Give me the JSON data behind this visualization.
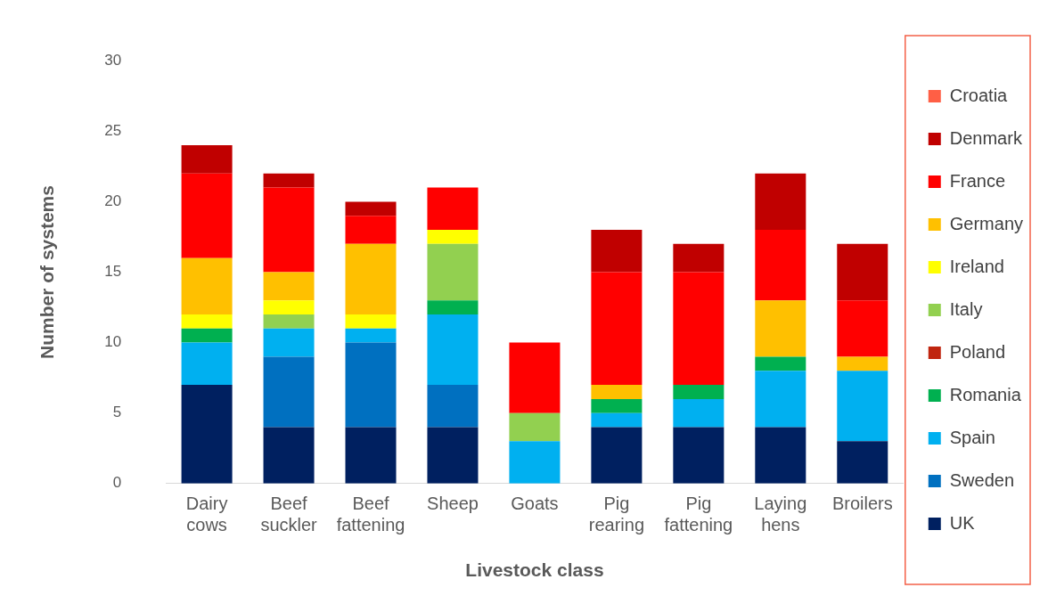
{
  "chart_data": {
    "type": "bar",
    "stacked": true,
    "xlabel": "Livestock class",
    "ylabel": "Number of systems",
    "categories": [
      "Dairy cows",
      "Beef suckler",
      "Beef fattening",
      "Sheep",
      "Goats",
      "Pig rearing",
      "Pig fattening",
      "Laying hens",
      "Broilers"
    ],
    "ylim": [
      0,
      30
    ],
    "yticks": [
      0,
      5,
      10,
      15,
      20,
      25,
      30
    ],
    "grid": false,
    "legend": "right",
    "series": [
      {
        "name": "UK",
        "color": "#002060",
        "values": [
          7,
          4,
          4,
          4,
          0,
          4,
          4,
          4,
          3
        ]
      },
      {
        "name": "Sweden",
        "color": "#0070c0",
        "values": [
          0,
          5,
          6,
          3,
          0,
          0,
          0,
          0,
          0
        ]
      },
      {
        "name": "Spain",
        "color": "#00b0f0",
        "values": [
          3,
          2,
          1,
          5,
          3,
          1,
          2,
          4,
          5
        ]
      },
      {
        "name": "Romania",
        "color": "#00b050",
        "values": [
          1,
          0,
          0,
          1,
          0,
          1,
          1,
          1,
          0
        ]
      },
      {
        "name": "Poland",
        "color": "#c0250f",
        "values": [
          0,
          0,
          0,
          0,
          0,
          0,
          0,
          0,
          0
        ]
      },
      {
        "name": "Italy",
        "color": "#92d050",
        "values": [
          0,
          1,
          0,
          4,
          2,
          0,
          0,
          0,
          0
        ]
      },
      {
        "name": "Ireland",
        "color": "#ffff00",
        "values": [
          1,
          1,
          1,
          1,
          0,
          0,
          0,
          0,
          0
        ]
      },
      {
        "name": "Germany",
        "color": "#ffc000",
        "values": [
          4,
          2,
          5,
          0,
          0,
          1,
          0,
          4,
          1
        ]
      },
      {
        "name": "France",
        "color": "#ff0000",
        "values": [
          6,
          6,
          2,
          3,
          5,
          8,
          8,
          5,
          4
        ]
      },
      {
        "name": "Denmark",
        "color": "#c00000",
        "values": [
          2,
          1,
          1,
          0,
          0,
          3,
          2,
          4,
          4
        ]
      },
      {
        "name": "Croatia",
        "color": "#ff5f45",
        "values": [
          0,
          0,
          0,
          0,
          0,
          0,
          0,
          0,
          0
        ]
      }
    ]
  }
}
